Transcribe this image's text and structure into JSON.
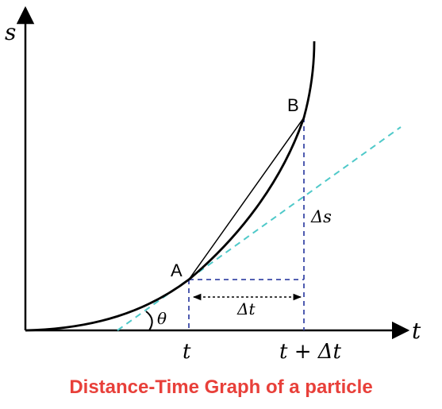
{
  "axes": {
    "y_label": "s",
    "x_label": "t"
  },
  "points": {
    "a_label": "A",
    "b_label": "B"
  },
  "annotations": {
    "theta": "θ",
    "delta_s": "Δs",
    "delta_t": "Δt",
    "tick_t": "t",
    "tick_t_plus_dt": "t + Δt"
  },
  "caption": "Distance-Time Graph of a particle",
  "colors": {
    "curve": "#000000",
    "tangent": "#4fc9c9",
    "guide": "#3c4aa8",
    "caption": "#e8403a"
  }
}
